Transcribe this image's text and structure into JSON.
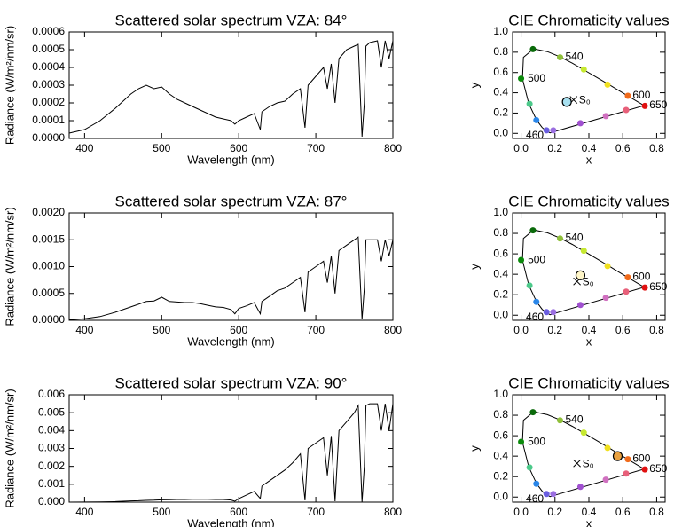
{
  "chart_data": [
    {
      "type": "line",
      "title": "Scattered solar spectrum VZA: 84°",
      "xlabel": "Wavelength (nm)",
      "ylabel": "Radiance (W/m²/nm/sr)",
      "xlim": [
        380,
        800
      ],
      "xticks": [
        400,
        500,
        600,
        700,
        800
      ],
      "ylim": [
        0,
        0.0006
      ],
      "yticks": [
        {
          "value": 0,
          "label": "0.0000"
        },
        {
          "value": 0.0001,
          "label": "0.0001"
        },
        {
          "value": 0.0002,
          "label": "0.0002"
        },
        {
          "value": 0.0003,
          "label": "0.0003"
        },
        {
          "value": 0.0004,
          "label": "0.0004"
        },
        {
          "value": 0.0005,
          "label": "0.0005"
        },
        {
          "value": 0.0006,
          "label": "0.0006"
        }
      ],
      "x": [
        380,
        400,
        420,
        440,
        460,
        470,
        480,
        490,
        500,
        510,
        520,
        530,
        540,
        550,
        560,
        570,
        580,
        590,
        595,
        600,
        610,
        620,
        628,
        630,
        640,
        650,
        660,
        670,
        680,
        686,
        690,
        700,
        710,
        715,
        720,
        725,
        730,
        740,
        750,
        755,
        760,
        763,
        765,
        770,
        780,
        785,
        790,
        795,
        800
      ],
      "series": [
        {
          "color": "#000000",
          "values": [
            3e-05,
            5e-05,
            0.0001,
            0.00017,
            0.00025,
            0.00028,
            0.0003,
            0.00028,
            0.00029,
            0.00025,
            0.00022,
            0.0002,
            0.00018,
            0.00016,
            0.00014,
            0.00012,
            0.00011,
            0.0001,
            8e-05,
            0.0001,
            0.00012,
            0.00014,
            5e-05,
            0.00015,
            0.00018,
            0.0002,
            0.00021,
            0.00025,
            0.00028,
            6e-05,
            0.0003,
            0.00035,
            0.0004,
            0.00028,
            0.00042,
            0.0002,
            0.00045,
            0.0005,
            0.00052,
            0.00053,
            1e-05,
            0.0002,
            0.00052,
            0.00054,
            0.00055,
            0.0004,
            0.00055,
            0.00045,
            0.00055
          ]
        }
      ]
    },
    {
      "type": "scatter",
      "title": "CIE Chromaticity values",
      "xlabel": "x",
      "ylabel": "y",
      "xlim": [
        -0.05,
        0.85
      ],
      "xticks": [
        {
          "value": 0,
          "label": "0.0"
        },
        {
          "value": 0.2,
          "label": "0.2"
        },
        {
          "value": 0.4,
          "label": "0.4"
        },
        {
          "value": 0.6,
          "label": "0.6"
        },
        {
          "value": 0.8,
          "label": "0.8"
        }
      ],
      "ylim": [
        -0.05,
        1.0
      ],
      "yticks": [
        {
          "value": 0,
          "label": "0.0"
        },
        {
          "value": 0.2,
          "label": "0.2"
        },
        {
          "value": 0.4,
          "label": "0.4"
        },
        {
          "value": 0.6,
          "label": "0.6"
        },
        {
          "value": 0.8,
          "label": "0.8"
        },
        {
          "value": 1,
          "label": "1.0"
        }
      ],
      "locus": {
        "x": [
          0.171,
          0.164,
          0.144,
          0.124,
          0.091,
          0.045,
          0.008,
          0.014,
          0.074,
          0.155,
          0.23,
          0.302,
          0.373,
          0.444,
          0.512,
          0.575,
          0.627,
          0.691,
          0.726
        ],
        "y": [
          0.005,
          0.011,
          0.03,
          0.058,
          0.133,
          0.295,
          0.538,
          0.75,
          0.834,
          0.806,
          0.754,
          0.692,
          0.624,
          0.555,
          0.487,
          0.424,
          0.372,
          0.308,
          0.274
        ],
        "labels": [
          null,
          null,
          "460",
          null,
          null,
          null,
          "500",
          null,
          null,
          null,
          "540",
          null,
          null,
          null,
          null,
          null,
          "600",
          null,
          "650"
        ]
      },
      "series": [
        {
          "x": [
            0.15,
            0.19,
            0.09,
            0.05,
            0.0,
            0.07,
            0.23,
            0.37,
            0.51,
            0.63,
            0.73,
            0.62,
            0.5,
            0.35
          ],
          "y": [
            0.03,
            0.03,
            0.13,
            0.29,
            0.54,
            0.83,
            0.75,
            0.63,
            0.48,
            0.37,
            0.27,
            0.23,
            0.17,
            0.1
          ],
          "colors": [
            "#6a5ee0",
            "#9a6ee0",
            "#2a86e8",
            "#4cc98a",
            "#0a8a0a",
            "#0a6a0a",
            "#8fbf3a",
            "#c6e830",
            "#f0e020",
            "#f06a1a",
            "#e01010",
            "#e8607a",
            "#d070c0",
            "#a050d0"
          ]
        }
      ],
      "point": {
        "x": 0.27,
        "y": 0.31,
        "color": "#a8e0f0"
      },
      "reference": {
        "label": "S₀",
        "x": 0.31,
        "y": 0.33
      }
    },
    {
      "type": "line",
      "title": "Scattered solar spectrum VZA: 87°",
      "xlabel": "Wavelength (nm)",
      "ylabel": "Radiance (W/m²/nm/sr)",
      "xlim": [
        380,
        800
      ],
      "xticks": [
        400,
        500,
        600,
        700,
        800
      ],
      "ylim": [
        0,
        0.002
      ],
      "yticks": [
        {
          "value": 0,
          "label": "0.0000"
        },
        {
          "value": 0.0005,
          "label": "0.0005"
        },
        {
          "value": 0.001,
          "label": "0.0010"
        },
        {
          "value": 0.0015,
          "label": "0.0015"
        },
        {
          "value": 0.002,
          "label": "0.0020"
        }
      ],
      "x": [
        380,
        400,
        420,
        440,
        460,
        470,
        480,
        490,
        500,
        510,
        520,
        530,
        540,
        550,
        560,
        570,
        580,
        590,
        595,
        600,
        610,
        620,
        628,
        630,
        640,
        650,
        660,
        670,
        680,
        686,
        690,
        700,
        710,
        715,
        720,
        725,
        730,
        740,
        750,
        755,
        760,
        763,
        765,
        770,
        780,
        785,
        790,
        795,
        800
      ],
      "series": [
        {
          "color": "#000000",
          "values": [
            1e-05,
            3e-05,
            7e-05,
            0.00015,
            0.00025,
            0.0003,
            0.00035,
            0.00036,
            0.00043,
            0.00035,
            0.00034,
            0.00033,
            0.00033,
            0.00031,
            0.00028,
            0.00025,
            0.00024,
            0.0002,
            0.00012,
            0.00022,
            0.00027,
            0.00033,
            0.00012,
            0.00035,
            0.00045,
            0.00055,
            0.0006,
            0.0007,
            0.0008,
            0.00015,
            0.0009,
            0.001,
            0.0011,
            0.0007,
            0.0012,
            0.0005,
            0.0013,
            0.0014,
            0.0015,
            0.00155,
            2e-05,
            0.0006,
            0.0015,
            0.0015,
            0.0015,
            0.0011,
            0.0015,
            0.0012,
            0.0015
          ]
        }
      ]
    },
    {
      "type": "scatter",
      "title": "CIE Chromaticity values",
      "xlabel": "x",
      "ylabel": "y",
      "xlim": [
        -0.05,
        0.85
      ],
      "xticks": [
        {
          "value": 0,
          "label": "0.0"
        },
        {
          "value": 0.2,
          "label": "0.2"
        },
        {
          "value": 0.4,
          "label": "0.4"
        },
        {
          "value": 0.6,
          "label": "0.6"
        },
        {
          "value": 0.8,
          "label": "0.8"
        }
      ],
      "ylim": [
        -0.05,
        1.0
      ],
      "yticks": [
        {
          "value": 0,
          "label": "0.0"
        },
        {
          "value": 0.2,
          "label": "0.2"
        },
        {
          "value": 0.4,
          "label": "0.4"
        },
        {
          "value": 0.6,
          "label": "0.6"
        },
        {
          "value": 0.8,
          "label": "0.8"
        },
        {
          "value": 1,
          "label": "1.0"
        }
      ],
      "locus": {
        "x": [
          0.171,
          0.164,
          0.144,
          0.124,
          0.091,
          0.045,
          0.008,
          0.014,
          0.074,
          0.155,
          0.23,
          0.302,
          0.373,
          0.444,
          0.512,
          0.575,
          0.627,
          0.691,
          0.726
        ],
        "y": [
          0.005,
          0.011,
          0.03,
          0.058,
          0.133,
          0.295,
          0.538,
          0.75,
          0.834,
          0.806,
          0.754,
          0.692,
          0.624,
          0.555,
          0.487,
          0.424,
          0.372,
          0.308,
          0.274
        ],
        "labels": [
          null,
          null,
          "460",
          null,
          null,
          null,
          "500",
          null,
          null,
          null,
          "540",
          null,
          null,
          null,
          null,
          null,
          "600",
          null,
          "650"
        ]
      },
      "series": [
        {
          "x": [
            0.15,
            0.19,
            0.09,
            0.05,
            0.0,
            0.07,
            0.23,
            0.37,
            0.51,
            0.63,
            0.73,
            0.62,
            0.5,
            0.35
          ],
          "y": [
            0.03,
            0.03,
            0.13,
            0.29,
            0.54,
            0.83,
            0.75,
            0.63,
            0.48,
            0.37,
            0.27,
            0.23,
            0.17,
            0.1
          ],
          "colors": [
            "#6a5ee0",
            "#9a6ee0",
            "#2a86e8",
            "#4cc98a",
            "#0a8a0a",
            "#0a6a0a",
            "#8fbf3a",
            "#c6e830",
            "#f0e020",
            "#f06a1a",
            "#e01010",
            "#e8607a",
            "#d070c0",
            "#a050d0"
          ]
        }
      ],
      "point": {
        "x": 0.35,
        "y": 0.39,
        "color": "#fff6c8"
      },
      "reference": {
        "label": "S₀",
        "x": 0.33,
        "y": 0.33
      }
    },
    {
      "type": "line",
      "title": "Scattered solar spectrum VZA: 90°",
      "xlabel": "Wavelength (nm)",
      "ylabel": "Radiance (W/m²/nm/sr)",
      "xlim": [
        380,
        800
      ],
      "xticks": [
        400,
        500,
        600,
        700,
        800
      ],
      "ylim": [
        0,
        0.006
      ],
      "yticks": [
        {
          "value": 0,
          "label": "0.000"
        },
        {
          "value": 0.001,
          "label": "0.001"
        },
        {
          "value": 0.002,
          "label": "0.002"
        },
        {
          "value": 0.003,
          "label": "0.003"
        },
        {
          "value": 0.004,
          "label": "0.004"
        },
        {
          "value": 0.005,
          "label": "0.005"
        },
        {
          "value": 0.006,
          "label": "0.006"
        }
      ],
      "x": [
        380,
        400,
        420,
        440,
        460,
        470,
        480,
        490,
        500,
        510,
        520,
        530,
        540,
        550,
        560,
        570,
        580,
        590,
        595,
        600,
        610,
        620,
        628,
        630,
        640,
        650,
        660,
        670,
        680,
        686,
        690,
        700,
        710,
        715,
        720,
        725,
        730,
        740,
        750,
        755,
        760,
        763,
        765,
        770,
        780,
        785,
        790,
        795,
        800
      ],
      "series": [
        {
          "color": "#000000",
          "values": [
            0,
            5e-06,
            1e-05,
            3e-05,
            7e-05,
            8e-05,
            0.0001,
            0.00011,
            0.00013,
            0.00014,
            0.00015,
            0.00015,
            0.00016,
            0.00016,
            0.00016,
            0.00015,
            0.00015,
            0.00012,
            5e-05,
            0.0002,
            0.0004,
            0.0006,
            0.0002,
            0.0009,
            0.0012,
            0.0015,
            0.0018,
            0.0022,
            0.0027,
            0.0001,
            0.003,
            0.0033,
            0.0036,
            0.0015,
            0.0037,
            5e-05,
            0.004,
            0.0045,
            0.005,
            0.0054,
            1e-05,
            0.002,
            0.0054,
            0.0055,
            0.0055,
            0.004,
            0.0055,
            0.004,
            0.0055
          ]
        }
      ]
    },
    {
      "type": "scatter",
      "title": "CIE Chromaticity values",
      "xlabel": "x",
      "ylabel": "y",
      "xlim": [
        -0.05,
        0.85
      ],
      "xticks": [
        {
          "value": 0,
          "label": "0.0"
        },
        {
          "value": 0.2,
          "label": "0.2"
        },
        {
          "value": 0.4,
          "label": "0.4"
        },
        {
          "value": 0.6,
          "label": "0.6"
        },
        {
          "value": 0.8,
          "label": "0.8"
        }
      ],
      "ylim": [
        -0.05,
        1.0
      ],
      "yticks": [
        {
          "value": 0,
          "label": "0.0"
        },
        {
          "value": 0.2,
          "label": "0.2"
        },
        {
          "value": 0.4,
          "label": "0.4"
        },
        {
          "value": 0.6,
          "label": "0.6"
        },
        {
          "value": 0.8,
          "label": "0.8"
        },
        {
          "value": 1,
          "label": "1.0"
        }
      ],
      "locus": {
        "x": [
          0.171,
          0.164,
          0.144,
          0.124,
          0.091,
          0.045,
          0.008,
          0.014,
          0.074,
          0.155,
          0.23,
          0.302,
          0.373,
          0.444,
          0.512,
          0.575,
          0.627,
          0.691,
          0.726
        ],
        "y": [
          0.005,
          0.011,
          0.03,
          0.058,
          0.133,
          0.295,
          0.538,
          0.75,
          0.834,
          0.806,
          0.754,
          0.692,
          0.624,
          0.555,
          0.487,
          0.424,
          0.372,
          0.308,
          0.274
        ],
        "labels": [
          null,
          null,
          "460",
          null,
          null,
          null,
          "500",
          null,
          null,
          null,
          "540",
          null,
          null,
          null,
          null,
          null,
          "600",
          null,
          "650"
        ]
      },
      "series": [
        {
          "x": [
            0.15,
            0.19,
            0.09,
            0.05,
            0.0,
            0.07,
            0.23,
            0.37,
            0.51,
            0.63,
            0.73,
            0.62,
            0.5,
            0.35
          ],
          "y": [
            0.03,
            0.03,
            0.13,
            0.29,
            0.54,
            0.83,
            0.75,
            0.63,
            0.48,
            0.37,
            0.27,
            0.23,
            0.17,
            0.1
          ],
          "colors": [
            "#6a5ee0",
            "#9a6ee0",
            "#2a86e8",
            "#4cc98a",
            "#0a8a0a",
            "#0a6a0a",
            "#8fbf3a",
            "#c6e830",
            "#f0e020",
            "#f06a1a",
            "#e01010",
            "#e8607a",
            "#d070c0",
            "#a050d0"
          ]
        }
      ],
      "point": {
        "x": 0.57,
        "y": 0.4,
        "color": "#e8a040"
      },
      "reference": {
        "label": "S₀",
        "x": 0.33,
        "y": 0.33
      }
    }
  ]
}
